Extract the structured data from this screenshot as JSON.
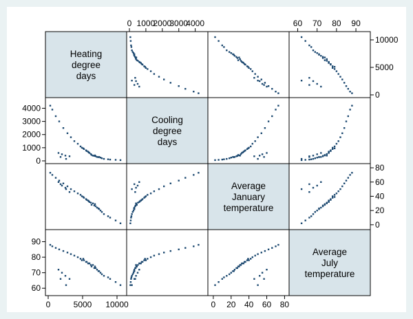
{
  "chart_data": {
    "type": "scatter",
    "variables": [
      {
        "label_lines": [
          "Heating",
          "degree",
          "days"
        ],
        "range": [
          0,
          11000
        ],
        "ticks": [
          0,
          5000,
          10000
        ],
        "tick_labels": [
          "0",
          "5000",
          "10000"
        ]
      },
      {
        "label_lines": [
          "Cooling",
          "degree",
          "days"
        ],
        "range": [
          0,
          4600
        ],
        "ticks": [
          0,
          1000,
          2000,
          3000,
          4000
        ],
        "tick_labels": [
          "0",
          "1000",
          "2000",
          "3000",
          "4000"
        ]
      },
      {
        "label_lines": [
          "Average",
          "January",
          "temperature"
        ],
        "range": [
          -3,
          82
        ],
        "ticks": [
          0,
          20,
          40,
          60,
          80
        ],
        "tick_labels": [
          "0",
          "20",
          "40",
          "60",
          "80"
        ]
      },
      {
        "label_lines": [
          "Average",
          "July",
          "temperature"
        ],
        "range": [
          57,
          96
        ],
        "ticks": [
          60,
          70,
          80,
          90
        ],
        "tick_labels": [
          "60",
          "70",
          "80",
          "90"
        ]
      }
    ],
    "axis_placement": {
      "top": [
        1,
        3
      ],
      "bottom": [
        0,
        2
      ],
      "left": [
        1,
        3
      ],
      "right": [
        0,
        2
      ]
    },
    "records": [
      [
        6500,
        400,
        30,
        75
      ],
      [
        7100,
        300,
        24,
        72
      ],
      [
        5800,
        700,
        34,
        76
      ],
      [
        6300,
        450,
        28,
        74
      ],
      [
        7600,
        250,
        20,
        70
      ],
      [
        5200,
        900,
        38,
        78
      ],
      [
        4700,
        1100,
        42,
        79
      ],
      [
        8100,
        150,
        15,
        68
      ],
      [
        6900,
        350,
        26,
        73
      ],
      [
        5500,
        800,
        36,
        77
      ],
      [
        4300,
        1300,
        44,
        80
      ],
      [
        7400,
        300,
        22,
        71
      ],
      [
        6000,
        600,
        32,
        76
      ],
      [
        3800,
        1500,
        47,
        81
      ],
      [
        3300,
        1800,
        50,
        82
      ],
      [
        2800,
        2100,
        54,
        83
      ],
      [
        2200,
        2500,
        58,
        84
      ],
      [
        1600,
        3000,
        62,
        85
      ],
      [
        1100,
        3400,
        66,
        86
      ],
      [
        600,
        3900,
        70,
        87
      ],
      [
        300,
        4200,
        73,
        88
      ],
      [
        9000,
        100,
        10,
        66
      ],
      [
        9800,
        80,
        6,
        64
      ],
      [
        10500,
        60,
        2,
        62
      ],
      [
        8700,
        120,
        12,
        67
      ],
      [
        6700,
        380,
        27,
        73
      ],
      [
        6200,
        520,
        31,
        75
      ],
      [
        5900,
        640,
        33,
        76
      ],
      [
        7300,
        280,
        23,
        71
      ],
      [
        6800,
        420,
        29,
        74
      ],
      [
        4900,
        1000,
        40,
        78
      ],
      [
        5100,
        950,
        39,
        79
      ],
      [
        2500,
        400,
        52,
        68
      ],
      [
        2000,
        500,
        55,
        70
      ],
      [
        1800,
        300,
        57,
        66
      ],
      [
        2600,
        150,
        50,
        62
      ],
      [
        3100,
        350,
        46,
        66
      ],
      [
        1500,
        600,
        60,
        72
      ],
      [
        7800,
        200,
        18,
        69
      ],
      [
        5600,
        750,
        35,
        77
      ]
    ]
  }
}
